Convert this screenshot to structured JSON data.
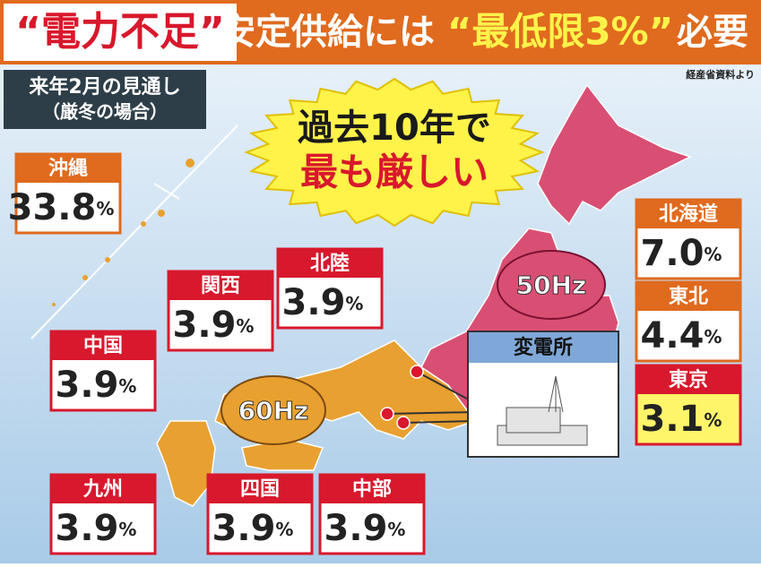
{
  "header": {
    "title_parts": [
      "“電力不足”",
      "安定供給には",
      "“最低限3%”",
      "必要"
    ],
    "source": "経産省資料より"
  },
  "subtitle": {
    "line1": "来年2月の見通し",
    "line2": "（厳冬の場合）"
  },
  "callout": {
    "line1": "過去10年で",
    "line2": "最も厳しい"
  },
  "map": {
    "east_label": "50Hz",
    "west_label": "60Hz",
    "substation": "変電所"
  },
  "regions": [
    {
      "name": "沖縄",
      "value": "33.8",
      "unit": "%"
    },
    {
      "name": "関西",
      "value": "3.9",
      "unit": "%"
    },
    {
      "name": "北陸",
      "value": "3.9",
      "unit": "%"
    },
    {
      "name": "中国",
      "value": "3.9",
      "unit": "%"
    },
    {
      "name": "北海道",
      "value": "7.0",
      "unit": "%"
    },
    {
      "name": "東北",
      "value": "4.4",
      "unit": "%"
    },
    {
      "name": "東京",
      "value": "3.1",
      "unit": "%"
    },
    {
      "name": "九州",
      "value": "3.9",
      "unit": "%"
    },
    {
      "name": "四国",
      "value": "3.9",
      "unit": "%"
    },
    {
      "name": "中部",
      "value": "3.9",
      "unit": "%"
    }
  ]
}
